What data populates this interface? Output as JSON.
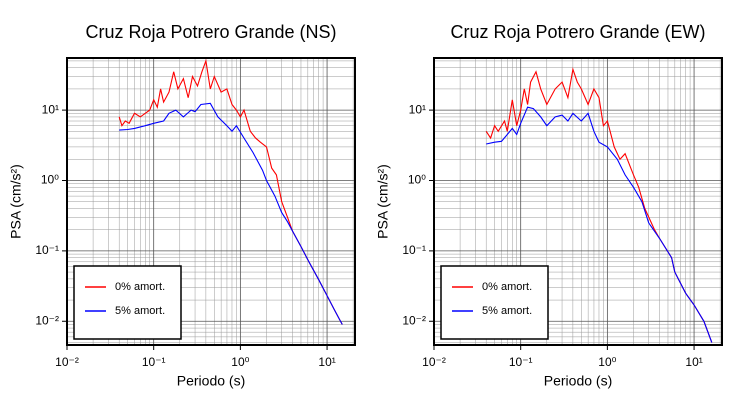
{
  "chart_data": [
    {
      "type": "line",
      "title": "Cruz Roja Potrero Grande (NS)",
      "xlabel": "Periodo (s)",
      "ylabel": "PSA (cm/s²)",
      "xscale": "log",
      "yscale": "log",
      "grid": true,
      "legend": "lower left",
      "xlim": [
        0.01,
        21
      ],
      "ylim": [
        0.0046,
        55
      ],
      "xticks": [
        {
          "value": 0.01,
          "label": "10⁻²"
        },
        {
          "value": 0.1,
          "label": "10⁻¹"
        },
        {
          "value": 1,
          "label": "10⁰"
        },
        {
          "value": 10,
          "label": "10¹"
        }
      ],
      "yticks": [
        {
          "value": 0.01,
          "label": "10⁻²"
        },
        {
          "value": 0.1,
          "label": "10⁻¹"
        },
        {
          "value": 1,
          "label": "10⁰"
        },
        {
          "value": 10,
          "label": "10¹"
        }
      ],
      "series": [
        {
          "name": "0% amort.",
          "color": "#ff0000",
          "x": [
            0.04,
            0.043,
            0.047,
            0.052,
            0.06,
            0.07,
            0.08,
            0.09,
            0.1,
            0.11,
            0.12,
            0.13,
            0.15,
            0.17,
            0.19,
            0.22,
            0.25,
            0.28,
            0.32,
            0.36,
            0.4,
            0.45,
            0.5,
            0.6,
            0.7,
            0.8,
            0.9,
            1.0,
            1.1,
            1.3,
            1.5,
            1.7,
            2.0,
            2.3,
            2.6,
            3.0,
            3.5,
            4,
            5,
            6,
            8,
            10,
            12,
            14,
            15
          ],
          "values": [
            8,
            6,
            7,
            6.5,
            9,
            8,
            9,
            10,
            14,
            11,
            20,
            13,
            18,
            35,
            20,
            28,
            15,
            30,
            22,
            35,
            50,
            20,
            30,
            18,
            20,
            12,
            10,
            8,
            10,
            5,
            4,
            3.5,
            3,
            1.5,
            1.2,
            0.5,
            0.3,
            0.19,
            0.115,
            0.075,
            0.039,
            0.023,
            0.015,
            0.0105,
            0.009
          ]
        },
        {
          "name": "5% amort.",
          "color": "#0000ff",
          "x": [
            0.04,
            0.05,
            0.06,
            0.08,
            0.1,
            0.13,
            0.15,
            0.18,
            0.22,
            0.27,
            0.3,
            0.35,
            0.45,
            0.55,
            0.7,
            0.8,
            0.9,
            1.1,
            1.4,
            1.8,
            2.0,
            2.5,
            3.0,
            3.5,
            4,
            5,
            6,
            8,
            10,
            12,
            14,
            15
          ],
          "values": [
            5.2,
            5.3,
            5.5,
            6,
            6.5,
            7,
            9,
            10,
            8,
            10,
            9.5,
            12,
            12.5,
            8,
            6,
            5,
            6,
            4,
            2.5,
            1.4,
            1,
            0.6,
            0.35,
            0.26,
            0.19,
            0.115,
            0.075,
            0.039,
            0.023,
            0.015,
            0.0105,
            0.009
          ]
        }
      ]
    },
    {
      "type": "line",
      "title": "Cruz Roja Potrero Grande (EW)",
      "xlabel": "Periodo (s)",
      "ylabel": "PSA (cm/s²)",
      "xscale": "log",
      "yscale": "log",
      "grid": true,
      "legend": "lower left",
      "xlim": [
        0.01,
        21
      ],
      "ylim": [
        0.0046,
        55
      ],
      "xticks": [
        {
          "value": 0.01,
          "label": "10⁻²"
        },
        {
          "value": 0.1,
          "label": "10⁻¹"
        },
        {
          "value": 1,
          "label": "10⁰"
        },
        {
          "value": 10,
          "label": "10¹"
        }
      ],
      "yticks": [
        {
          "value": 0.01,
          "label": "10⁻²"
        },
        {
          "value": 0.1,
          "label": "10⁻¹"
        },
        {
          "value": 1,
          "label": "10⁰"
        },
        {
          "value": 10,
          "label": "10¹"
        }
      ],
      "series": [
        {
          "name": "0% amort.",
          "color": "#ff0000",
          "x": [
            0.04,
            0.045,
            0.05,
            0.055,
            0.065,
            0.07,
            0.08,
            0.09,
            0.1,
            0.11,
            0.12,
            0.13,
            0.15,
            0.17,
            0.2,
            0.25,
            0.3,
            0.35,
            0.4,
            0.45,
            0.5,
            0.6,
            0.7,
            0.8,
            0.9,
            1.0,
            1.2,
            1.4,
            1.6,
            2.0,
            2.3,
            2.7,
            3.5,
            4,
            5.5,
            6,
            8,
            10,
            13,
            16
          ],
          "values": [
            5,
            4,
            6,
            5,
            7,
            5,
            14,
            6,
            10,
            20,
            12,
            25,
            35,
            20,
            12,
            20,
            25,
            15,
            38,
            25,
            20,
            12,
            20,
            15,
            6,
            7,
            3,
            2,
            2.4,
            1.2,
            0.8,
            0.4,
            0.2,
            0.15,
            0.08,
            0.05,
            0.025,
            0.017,
            0.01,
            0.005
          ]
        },
        {
          "name": "5% amort.",
          "color": "#0000ff",
          "x": [
            0.04,
            0.05,
            0.06,
            0.07,
            0.08,
            0.09,
            0.1,
            0.12,
            0.14,
            0.17,
            0.2,
            0.25,
            0.3,
            0.35,
            0.4,
            0.5,
            0.6,
            0.7,
            0.8,
            1.0,
            1.3,
            1.6,
            2.0,
            2.5,
            3,
            4,
            5.5,
            6,
            8,
            10,
            13,
            16
          ],
          "values": [
            3.3,
            3.5,
            3.6,
            4.5,
            5.5,
            4.5,
            6.5,
            11,
            10.5,
            8,
            6,
            8,
            8.5,
            7,
            9,
            7,
            9,
            5,
            3.5,
            3,
            2,
            1.2,
            0.8,
            0.5,
            0.25,
            0.15,
            0.08,
            0.05,
            0.025,
            0.017,
            0.01,
            0.005
          ]
        }
      ]
    }
  ]
}
